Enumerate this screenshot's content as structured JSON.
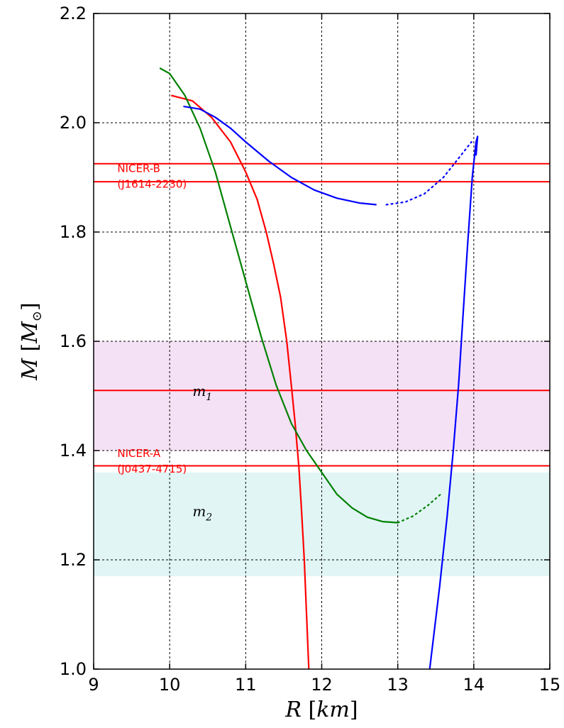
{
  "chart_data": {
    "type": "line",
    "xlabel": {
      "var": "R",
      "unit": "km"
    },
    "ylabel": {
      "var": "M",
      "unit": "M",
      "unit_sub": "⊙"
    },
    "xlim": [
      9,
      15
    ],
    "ylim": [
      1.0,
      2.2
    ],
    "xticks": [
      "9",
      "10",
      "11",
      "12",
      "13",
      "14",
      "15"
    ],
    "yticks": [
      "1.0",
      "1.2",
      "1.4",
      "1.6",
      "1.8",
      "2.0",
      "2.2"
    ],
    "grid": true,
    "bands": [
      {
        "y": [
          1.4,
          1.6
        ],
        "color": "#f5e1f5",
        "label": "m",
        "label_sub": "1",
        "label_pos": [
          10.3,
          1.5
        ]
      },
      {
        "y": [
          1.17,
          1.36
        ],
        "color": "#e1f5f5",
        "label": "m",
        "label_sub": "2",
        "label_pos": [
          10.3,
          1.28
        ]
      }
    ],
    "hlines": [
      {
        "y": 1.925,
        "color": "#ff0000"
      },
      {
        "y": 1.892,
        "color": "#ff0000"
      },
      {
        "y": 1.51,
        "color": "#ff0000"
      },
      {
        "y": 1.372,
        "color": "#ff0000"
      }
    ],
    "annotations": [
      {
        "lines": [
          "NICER-B",
          "(J1614-2230)"
        ],
        "color": "#ff0000",
        "x": 9.05,
        "y": 1.91
      },
      {
        "lines": [
          "NICER-A",
          "(J0437-4715)"
        ],
        "color": "#ff0000",
        "x": 9.05,
        "y": 1.388
      }
    ],
    "series": [
      {
        "color": "#ff0000",
        "solid": [
          [
            10.02,
            2.05
          ],
          [
            10.3,
            2.04
          ],
          [
            10.55,
            2.01
          ],
          [
            10.8,
            1.965
          ],
          [
            11.0,
            1.91
          ],
          [
            11.15,
            1.86
          ],
          [
            11.27,
            1.8
          ],
          [
            11.37,
            1.74
          ],
          [
            11.46,
            1.68
          ],
          [
            11.54,
            1.6
          ],
          [
            11.6,
            1.52
          ],
          [
            11.65,
            1.45
          ],
          [
            11.7,
            1.37
          ],
          [
            11.73,
            1.3
          ],
          [
            11.77,
            1.2
          ],
          [
            11.8,
            1.1
          ],
          [
            11.83,
            1.0
          ]
        ],
        "dotted": []
      },
      {
        "color": "#008000",
        "solid": [
          [
            9.87,
            2.1
          ],
          [
            10.0,
            2.09
          ],
          [
            10.2,
            2.05
          ],
          [
            10.4,
            1.99
          ],
          [
            10.6,
            1.91
          ],
          [
            10.8,
            1.81
          ],
          [
            11.0,
            1.71
          ],
          [
            11.2,
            1.61
          ],
          [
            11.4,
            1.52
          ],
          [
            11.6,
            1.45
          ],
          [
            11.8,
            1.4
          ],
          [
            12.0,
            1.36
          ],
          [
            12.2,
            1.32
          ],
          [
            12.4,
            1.295
          ],
          [
            12.6,
            1.278
          ],
          [
            12.8,
            1.27
          ],
          [
            13.0,
            1.268
          ]
        ],
        "dotted": [
          [
            13.0,
            1.268
          ],
          [
            13.2,
            1.28
          ],
          [
            13.4,
            1.3
          ],
          [
            13.58,
            1.322
          ]
        ]
      },
      {
        "color": "#0000ff",
        "solid": [
          [
            10.18,
            2.03
          ],
          [
            10.4,
            2.025
          ],
          [
            10.6,
            2.01
          ],
          [
            10.8,
            1.99
          ],
          [
            11.0,
            1.965
          ],
          [
            11.3,
            1.93
          ],
          [
            11.6,
            1.9
          ],
          [
            11.9,
            1.877
          ],
          [
            12.2,
            1.862
          ],
          [
            12.5,
            1.853
          ],
          [
            12.72,
            1.85
          ]
        ],
        "dotted": [
          [
            12.85,
            1.85
          ],
          [
            13.1,
            1.855
          ],
          [
            13.35,
            1.87
          ],
          [
            13.6,
            1.9
          ],
          [
            13.8,
            1.935
          ],
          [
            13.97,
            1.965
          ]
        ],
        "solid2": [
          [
            13.42,
            1.0
          ],
          [
            13.55,
            1.15
          ],
          [
            13.65,
            1.28
          ],
          [
            13.73,
            1.4
          ],
          [
            13.8,
            1.52
          ],
          [
            13.86,
            1.65
          ],
          [
            13.92,
            1.78
          ],
          [
            13.98,
            1.9
          ],
          [
            14.03,
            1.965
          ],
          [
            14.05,
            1.975
          ],
          [
            14.03,
            1.94
          ]
        ]
      }
    ]
  }
}
